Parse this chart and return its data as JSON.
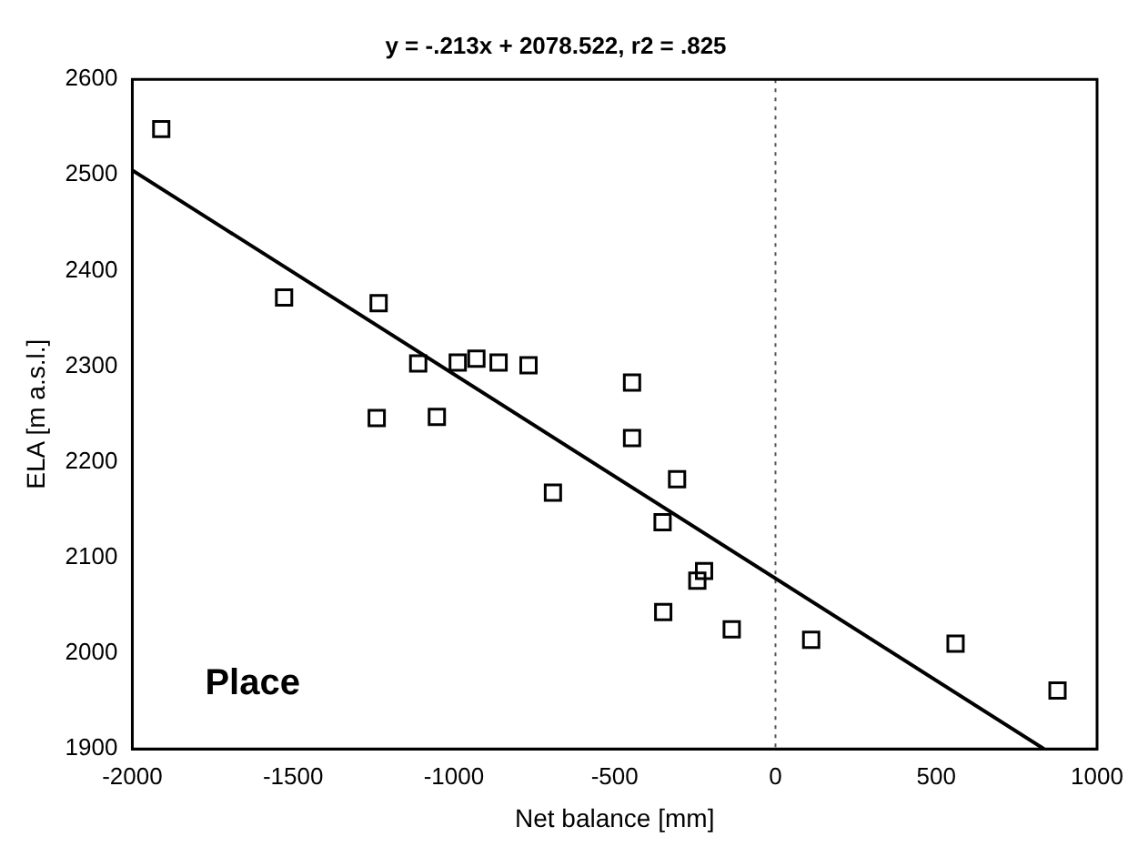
{
  "chart_data": {
    "type": "scatter",
    "title": "y = -.213x + 2078.522, r2 = .825",
    "xlabel": "Net balance [mm]",
    "ylabel": "ELA [m a.s.l.]",
    "xlim": [
      -2000,
      1000
    ],
    "xticks": [
      -2000,
      -1500,
      -1000,
      -500,
      0,
      500,
      1000
    ],
    "ylim": [
      1900,
      2600
    ],
    "yticks": [
      1900,
      2000,
      2100,
      2200,
      2300,
      2400,
      2500,
      2600
    ],
    "grid": false,
    "legend": false,
    "marker": "square",
    "ref_lines": [
      {
        "axis": "x",
        "value": 0,
        "line_style": "dotted",
        "color": "#555555"
      }
    ],
    "annotations": [
      "Place"
    ],
    "series": [
      {
        "color": "#000000",
        "x": [
          -1910,
          -1528,
          -1234,
          -1111,
          -988,
          -930,
          -861,
          -768,
          -1240,
          -1053,
          -692,
          -446,
          -446,
          -306,
          -351,
          -222,
          -243,
          -349,
          -136,
          111,
          560,
          877
        ],
        "values": [
          2548,
          2372,
          2366,
          2303,
          2304,
          2308,
          2304,
          2301,
          2246,
          2247,
          2168,
          2283,
          2225,
          2182,
          2137,
          2086,
          2076,
          2043,
          2025,
          2014,
          2010,
          1961
        ]
      },
      {
        "type": "line",
        "color": "#000000",
        "marker": "none",
        "x": [
          -2000,
          835
        ],
        "values": [
          2505,
          1900
        ]
      }
    ]
  }
}
